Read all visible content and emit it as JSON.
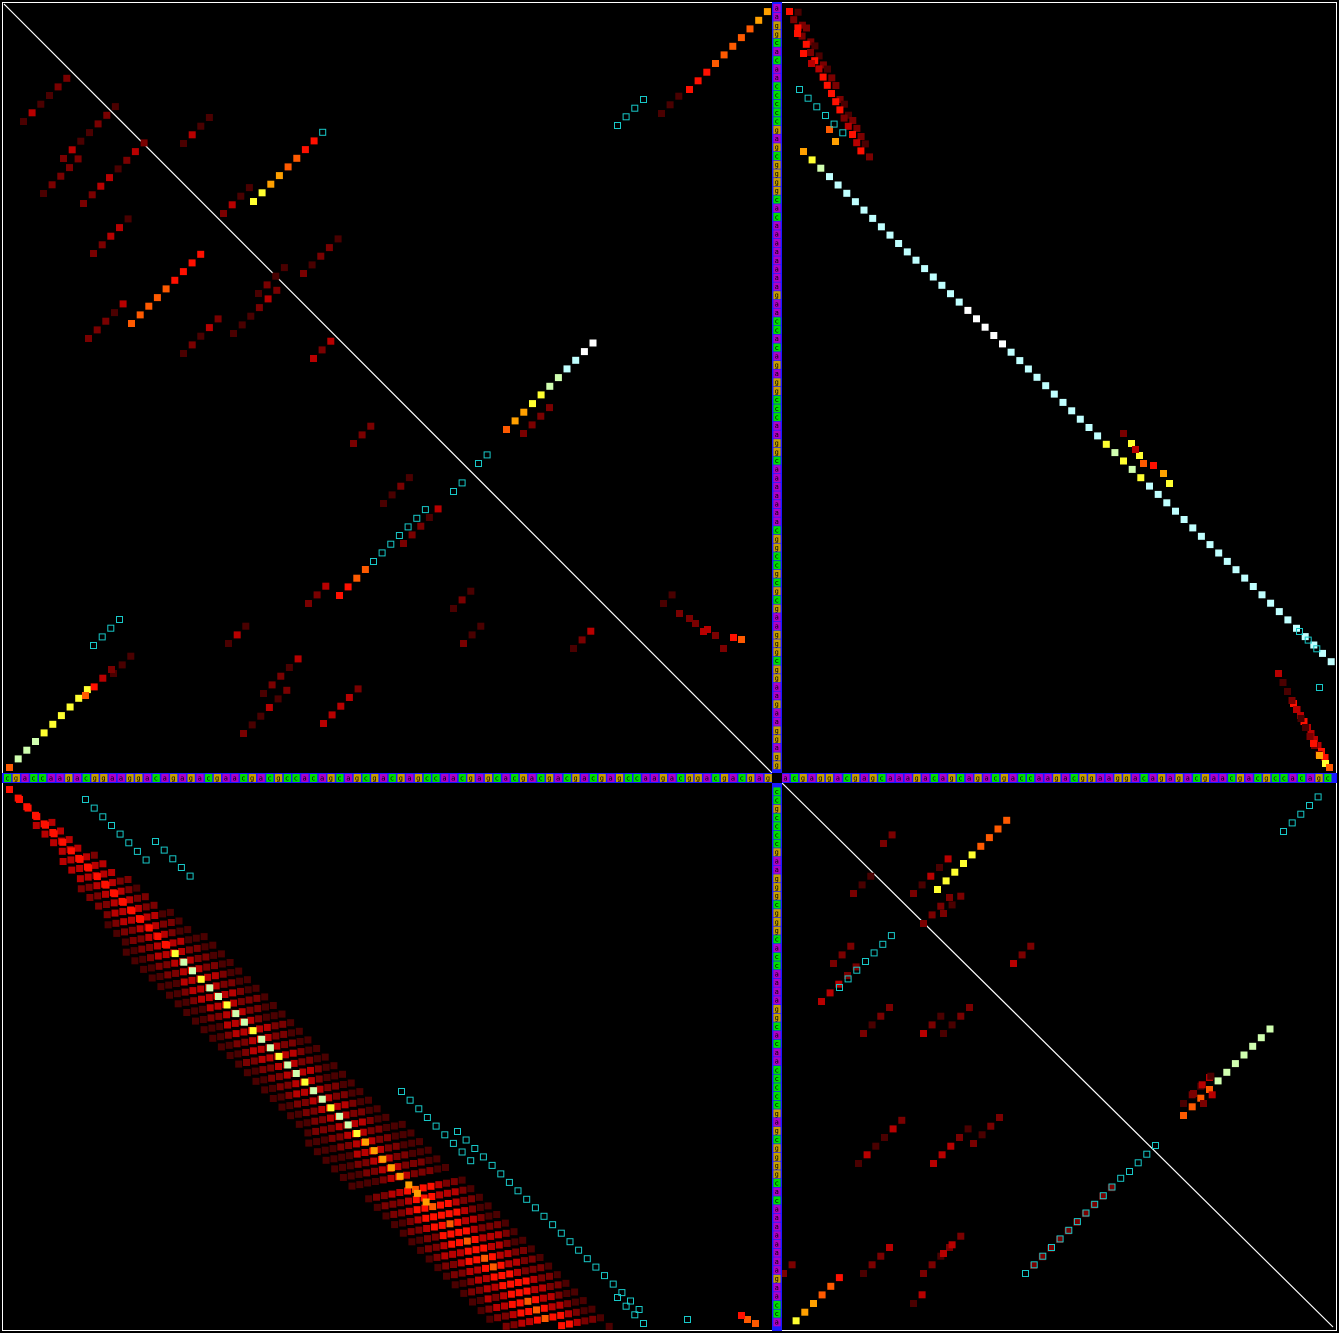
{
  "dotplot": {
    "background": "#000000",
    "border": "#ffffff",
    "sequence": "cgaccaagacggaaggacagagacgaacgacgccacagcagcgacgagccaacgagcacgacgacgacgagccaagacggacgacgagcacgaggacgagcaaagacagcaga",
    "nucleotide_colors": {
      "a": "#b000c8",
      "c": "#00e000",
      "g": "#c8a000",
      "u": "#0000ff",
      "t": "#0000ff"
    },
    "heat_colors": [
      "#1e0000",
      "#4a0000",
      "#7a0000",
      "#b80000",
      "#ff1000",
      "#ff5a00",
      "#ffa000",
      "#ffff30",
      "#d0ffb0",
      "#c0ffff",
      "#ffffff"
    ],
    "outline_color": "#18c8c8",
    "diagonal_color": "#ffffff",
    "divider_color": "#1a1aff"
  }
}
